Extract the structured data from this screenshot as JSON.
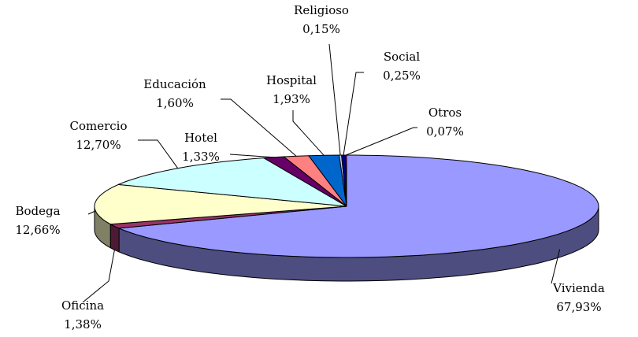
{
  "chart_data": {
    "type": "pie3d",
    "categories": [
      "Vivienda",
      "Oficina",
      "Bodega",
      "Comercio",
      "Hotel",
      "Educación",
      "Hospital",
      "Religioso",
      "Social",
      "Otros"
    ],
    "values": [
      67.93,
      1.38,
      12.66,
      12.7,
      1.33,
      1.6,
      1.93,
      0.15,
      0.25,
      0.07
    ],
    "value_labels": [
      "67,93%",
      "1,38%",
      "12,66%",
      "12,70%",
      "1,33%",
      "1,60%",
      "1,93%",
      "0,15%",
      "0,25%",
      "0,07%"
    ],
    "colors": [
      "#9999ff",
      "#993366",
      "#ffffcc",
      "#ccffff",
      "#660066",
      "#ff8080",
      "#0066cc",
      "#ccccff",
      "#000080",
      "#ff00ff"
    ]
  }
}
